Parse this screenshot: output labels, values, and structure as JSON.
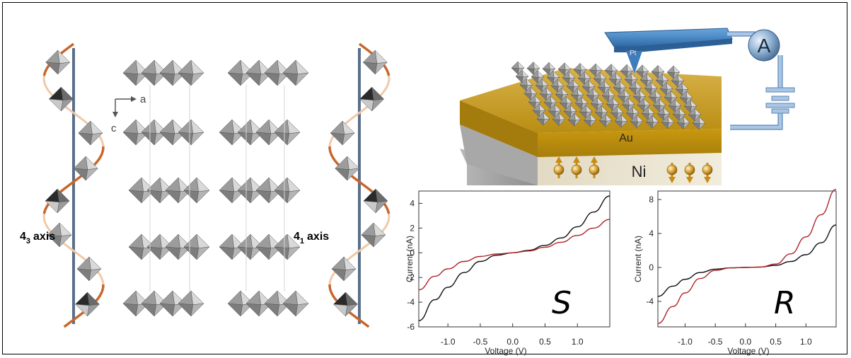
{
  "structure": {
    "axis_label_a": "a",
    "axis_label_c": "c",
    "left_helix": {
      "number": "4",
      "subscript": "3",
      "suffix": "axis"
    },
    "right_helix": {
      "number": "4",
      "subscript": "1",
      "suffix": "axis"
    }
  },
  "device": {
    "tip_label": "Pt",
    "ammeter_label": "A",
    "top_layer_label": "Au",
    "bottom_layer_label": "Ni"
  },
  "colors": {
    "black_curve": "#111111",
    "red_curve": "#b0232a",
    "helix": "#c8662a",
    "gold": "#c9a017",
    "ni": "#e9e2cf",
    "cantilever": "#4f8fcf"
  },
  "chart_data": [
    {
      "type": "line",
      "annotation": "S",
      "xlabel": "Voltage (V)",
      "ylabel": "Current (nA)",
      "xlim": [
        -1.45,
        1.5
      ],
      "ylim": [
        -6,
        5
      ],
      "xticks": [
        "-1.0",
        "-0.5",
        "0.0",
        "0.5",
        "1.0"
      ],
      "xtick_values": [
        -1.0,
        -0.5,
        0.0,
        0.5,
        1.0
      ],
      "yticks": [
        "4",
        "2",
        "0",
        "-2",
        "-4",
        "-6"
      ],
      "ytick_values": [
        4,
        2,
        0,
        -2,
        -4,
        -6
      ],
      "series": [
        {
          "color": "#111111",
          "x": [
            -1.45,
            -1.2,
            -1.0,
            -0.75,
            -0.5,
            -0.25,
            0.0,
            0.25,
            0.5,
            0.75,
            1.0,
            1.25,
            1.5
          ],
          "y": [
            -5.5,
            -3.8,
            -2.8,
            -1.6,
            -0.7,
            -0.2,
            0.0,
            0.2,
            0.6,
            1.2,
            2.1,
            3.3,
            4.6
          ]
        },
        {
          "color": "#b0232a",
          "x": [
            -1.45,
            -1.2,
            -1.0,
            -0.75,
            -0.5,
            -0.25,
            0.0,
            0.25,
            0.5,
            0.75,
            1.0,
            1.25,
            1.5
          ],
          "y": [
            -3.0,
            -1.9,
            -1.3,
            -0.7,
            -0.3,
            -0.1,
            0.0,
            0.15,
            0.45,
            0.85,
            1.4,
            2.0,
            2.7
          ]
        }
      ]
    },
    {
      "type": "line",
      "annotation": "R",
      "xlabel": "Voltage (V)",
      "ylabel": "Current (nA)",
      "xlim": [
        -1.45,
        1.5
      ],
      "ylim": [
        -7,
        9
      ],
      "xticks": [
        "-1.0",
        "-0.5",
        "0.0",
        "0.5",
        "1.0"
      ],
      "xtick_values": [
        -1.0,
        -0.5,
        0.0,
        0.5,
        1.0
      ],
      "yticks": [
        "8",
        "4",
        "0",
        "-4"
      ],
      "ytick_values": [
        8,
        4,
        0,
        -4
      ],
      "series": [
        {
          "color": "#111111",
          "x": [
            -1.45,
            -1.2,
            -1.0,
            -0.75,
            -0.5,
            -0.25,
            0.0,
            0.25,
            0.5,
            0.75,
            1.0,
            1.25,
            1.5
          ],
          "y": [
            -3.4,
            -2.2,
            -1.4,
            -0.6,
            -0.2,
            -0.05,
            0.0,
            0.05,
            0.25,
            0.7,
            1.5,
            2.9,
            5.0
          ]
        },
        {
          "color": "#b0232a",
          "x": [
            -1.45,
            -1.2,
            -1.0,
            -0.75,
            -0.5,
            -0.25,
            0.0,
            0.25,
            0.5,
            0.75,
            1.0,
            1.25,
            1.5
          ],
          "y": [
            -6.6,
            -4.6,
            -3.0,
            -1.3,
            -0.35,
            -0.05,
            0.0,
            0.05,
            0.4,
            1.6,
            3.6,
            6.2,
            9.2
          ]
        }
      ]
    }
  ]
}
